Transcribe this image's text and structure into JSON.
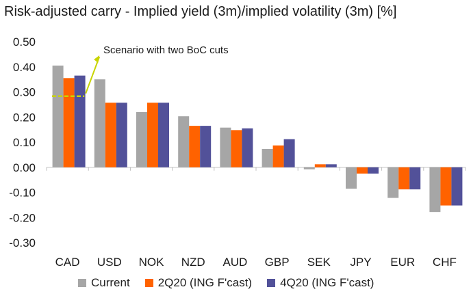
{
  "chart_data": {
    "type": "bar",
    "title": "Risk-adjusted carry - Implied yield (3m)/implied volatility (3m) [%]",
    "categories": [
      "CAD",
      "USD",
      "NOK",
      "NZD",
      "AUD",
      "GBP",
      "SEK",
      "JPY",
      "EUR",
      "CHF"
    ],
    "series": [
      {
        "name": "Current",
        "color": "#a6a6a6",
        "values": [
          0.405,
          0.35,
          0.22,
          0.203,
          0.158,
          0.073,
          -0.008,
          -0.085,
          -0.122,
          -0.178
        ]
      },
      {
        "name": "2Q20 (ING F'cast)",
        "color": "#ff6200",
        "values": [
          0.355,
          0.257,
          0.257,
          0.165,
          0.148,
          0.087,
          0.012,
          -0.025,
          -0.088,
          -0.152
        ]
      },
      {
        "name": "4Q20 (ING F'cast)",
        "color": "#525199",
        "values": [
          0.365,
          0.257,
          0.257,
          0.165,
          0.155,
          0.112,
          0.012,
          -0.025,
          -0.088,
          -0.152
        ]
      }
    ],
    "ylim": [
      -0.3,
      0.5
    ],
    "yticks": [
      "0.50",
      "0.40",
      "0.30",
      "0.20",
      "0.10",
      "0.00",
      "-0.10",
      "-0.20",
      "-0.30"
    ],
    "grid": false,
    "legend_position": "bottom",
    "annotation": {
      "text": "Scenario with two BoC cuts",
      "category": "CAD",
      "level": 0.283,
      "line_color": "#c8d400"
    }
  }
}
